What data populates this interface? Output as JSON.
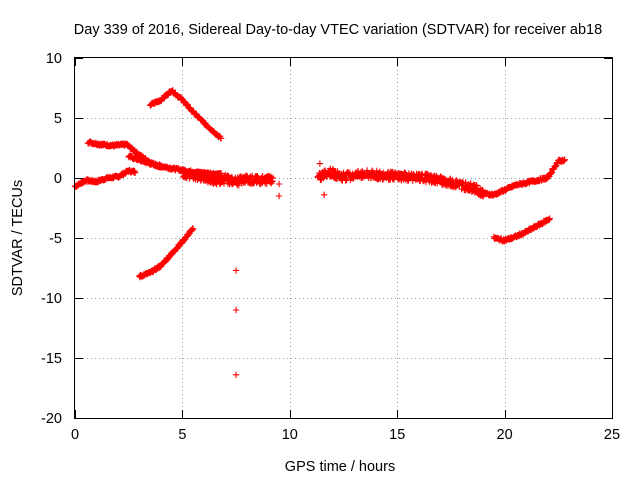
{
  "chart_data": {
    "type": "scatter",
    "title": "Day 339 of 2016, Sidereal Day-to-day VTEC variation (SDTVAR) for receiver ab18",
    "xlabel": "GPS time / hours",
    "ylabel": "SDTVAR / TECUs",
    "xlim": [
      0,
      25
    ],
    "ylim": [
      -20,
      10
    ],
    "xticks": [
      0,
      5,
      10,
      15,
      20,
      25
    ],
    "yticks": [
      -20,
      -15,
      -10,
      -5,
      0,
      5,
      10
    ],
    "grid": true,
    "marker": "plus",
    "color": "#ff0000",
    "segments": [
      {
        "name": "arc-early-low",
        "x_range": [
          0.0,
          2.8
        ],
        "y_points": [
          [
            0.0,
            -0.7
          ],
          [
            0.5,
            -0.2
          ],
          [
            1.0,
            -0.3
          ],
          [
            1.5,
            0.0
          ],
          [
            2.0,
            0.1
          ],
          [
            2.5,
            0.6
          ],
          [
            2.8,
            0.5
          ]
        ]
      },
      {
        "name": "arc-descending",
        "x_range": [
          0.6,
          4.0
        ],
        "y_points": [
          [
            0.6,
            3.0
          ],
          [
            1.2,
            2.8
          ],
          [
            1.8,
            2.7
          ],
          [
            2.4,
            2.8
          ],
          [
            3.0,
            1.9
          ],
          [
            3.6,
            1.2
          ],
          [
            4.0,
            0.9
          ]
        ]
      },
      {
        "name": "arc-trail",
        "x_range": [
          2.5,
          6.8
        ],
        "y_points": [
          [
            2.5,
            1.8
          ],
          [
            3.5,
            1.2
          ],
          [
            4.5,
            0.8
          ],
          [
            5.5,
            0.5
          ],
          [
            6.8,
            0.3
          ]
        ]
      },
      {
        "name": "arc-peak",
        "x_range": [
          3.5,
          6.8
        ],
        "y_points": [
          [
            3.5,
            6.1
          ],
          [
            4.0,
            6.5
          ],
          [
            4.5,
            7.3
          ],
          [
            5.0,
            6.5
          ],
          [
            5.5,
            5.5
          ],
          [
            6.0,
            4.6
          ],
          [
            6.5,
            3.8
          ],
          [
            6.8,
            3.3
          ]
        ]
      },
      {
        "name": "arc-rise-negative",
        "x_range": [
          3.0,
          5.5
        ],
        "y_points": [
          [
            3.0,
            -8.2
          ],
          [
            3.5,
            -7.9
          ],
          [
            4.0,
            -7.3
          ],
          [
            4.5,
            -6.3
          ],
          [
            5.0,
            -5.3
          ],
          [
            5.5,
            -4.2
          ]
        ]
      },
      {
        "name": "cluster-mid",
        "x_range": [
          5.0,
          9.2
        ],
        "y_points": [
          [
            5.0,
            0.3
          ],
          [
            5.5,
            0.2
          ],
          [
            6.0,
            0.1
          ],
          [
            6.5,
            -0.2
          ],
          [
            7.0,
            -0.1
          ],
          [
            7.5,
            -0.3
          ],
          [
            8.0,
            -0.1
          ],
          [
            8.5,
            -0.2
          ],
          [
            9.2,
            -0.1
          ]
        ]
      },
      {
        "name": "cluster-late",
        "x_range": [
          11.3,
          19.0
        ],
        "y_points": [
          [
            11.3,
            0.0
          ],
          [
            11.8,
            0.5
          ],
          [
            12.5,
            0.1
          ],
          [
            13.5,
            0.3
          ],
          [
            14.5,
            0.2
          ],
          [
            15.5,
            0.1
          ],
          [
            16.5,
            0.0
          ],
          [
            17.5,
            -0.4
          ],
          [
            18.5,
            -0.8
          ],
          [
            19.0,
            -1.2
          ]
        ]
      },
      {
        "name": "arc-end-upper",
        "x_range": [
          19.0,
          22.8
        ],
        "y_points": [
          [
            19.0,
            -1.3
          ],
          [
            19.5,
            -1.4
          ],
          [
            20.0,
            -1.0
          ],
          [
            20.5,
            -0.6
          ],
          [
            21.0,
            -0.4
          ],
          [
            21.5,
            -0.2
          ],
          [
            22.0,
            0.0
          ],
          [
            22.5,
            1.4
          ],
          [
            22.8,
            1.5
          ]
        ]
      },
      {
        "name": "arc-end-lower",
        "x_range": [
          19.5,
          22.1
        ],
        "y_points": [
          [
            19.5,
            -5.0
          ],
          [
            20.0,
            -5.2
          ],
          [
            20.5,
            -4.9
          ],
          [
            21.0,
            -4.5
          ],
          [
            21.5,
            -4.0
          ],
          [
            22.1,
            -3.4
          ]
        ]
      }
    ],
    "isolated_points": [
      {
        "x": 7.5,
        "y": -7.7
      },
      {
        "x": 7.5,
        "y": -11.0
      },
      {
        "x": 7.5,
        "y": -16.4
      },
      {
        "x": 9.5,
        "y": -0.5
      },
      {
        "x": 9.5,
        "y": -1.5
      },
      {
        "x": 11.4,
        "y": 1.2
      },
      {
        "x": 11.6,
        "y": -1.4
      }
    ]
  }
}
